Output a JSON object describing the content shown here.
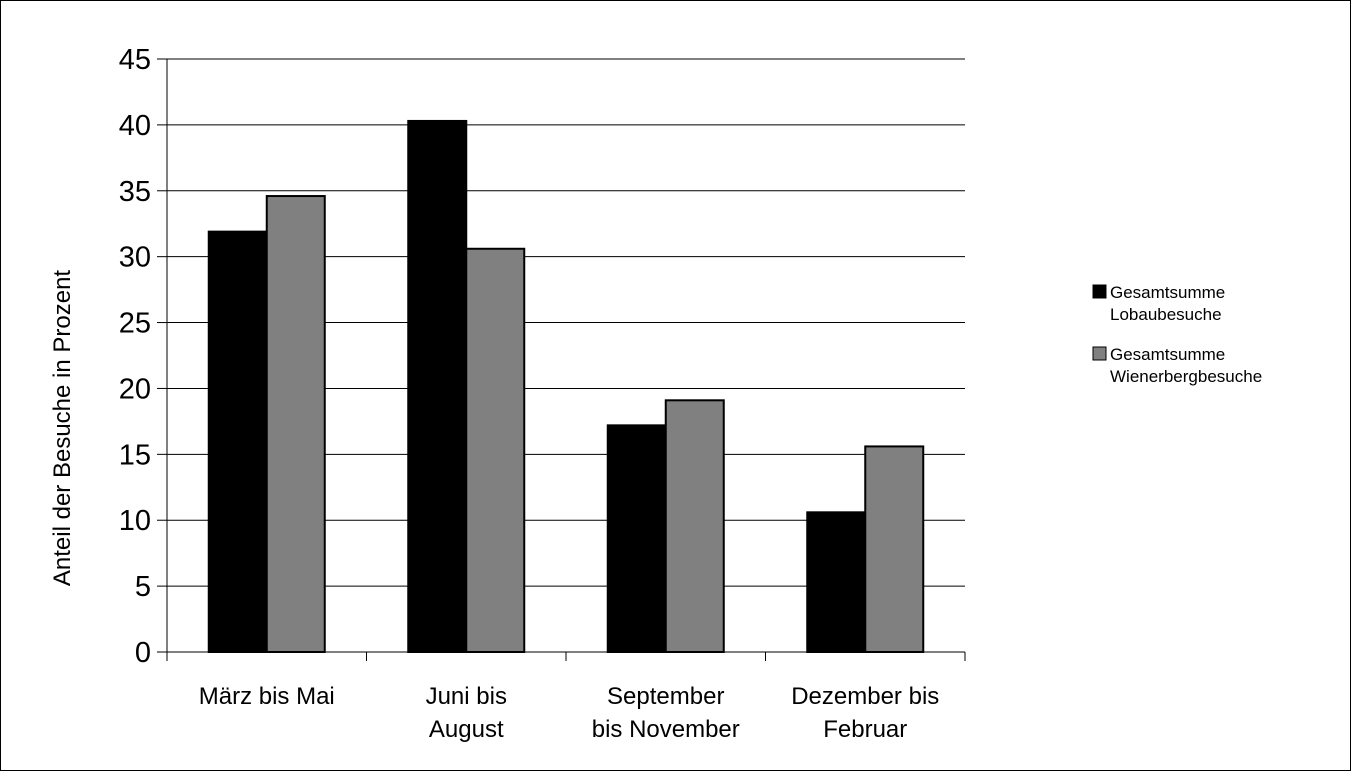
{
  "chart_data": {
    "type": "bar",
    "categories": [
      [
        "März bis Mai"
      ],
      [
        "Juni bis",
        "August"
      ],
      [
        "September",
        "bis November"
      ],
      [
        "Dezember bis",
        "Februar"
      ]
    ],
    "series": [
      {
        "name": [
          "Gesamtsumme",
          "Lobaubesuche"
        ],
        "values": [
          31.9,
          40.3,
          17.2,
          10.6
        ],
        "color": "#000000"
      },
      {
        "name": [
          "Gesamtsumme",
          "Wienerbergbesuche"
        ],
        "values": [
          34.6,
          30.6,
          19.1,
          15.6
        ],
        "color": "#808080"
      }
    ],
    "ylabel": "Anteil der Besuche in Prozent",
    "xlabel": "",
    "ylim": [
      0,
      45
    ],
    "yticks": [
      "0",
      "5",
      "10",
      "15",
      "20",
      "25",
      "30",
      "35",
      "40",
      "45"
    ],
    "grid": true,
    "legend_position": "right"
  }
}
